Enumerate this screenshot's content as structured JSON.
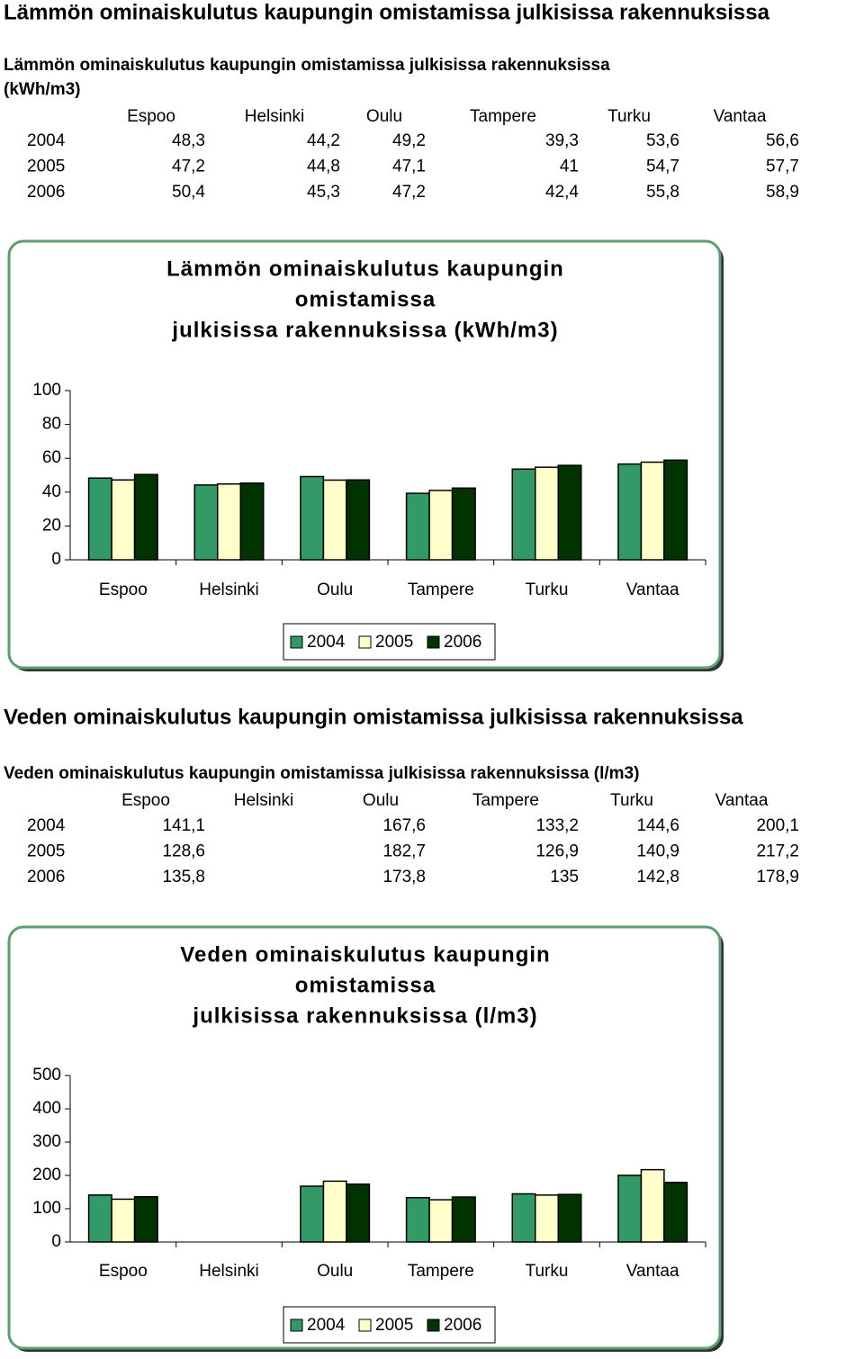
{
  "sections": [
    {
      "heading": "Lämmön ominaiskulutus kaupungin omistamissa julkisissa rakennuksissa",
      "table": {
        "title": [
          "Lämmön ominaiskulutus kaupungin omistamissa julkisissa rakennuksissa",
          "(kWh/m3)"
        ],
        "columns": [
          "Espoo",
          "Helsinki",
          "Oulu",
          "Tampere",
          "Turku",
          "Vantaa"
        ],
        "rows": [
          {
            "label": "2004",
            "cells": [
              "48,3",
              "44,2",
              "49,2",
              "39,3",
              "53,6",
              "56,6"
            ]
          },
          {
            "label": "2005",
            "cells": [
              "47,2",
              "44,8",
              "47,1",
              "41",
              "54,7",
              "57,7"
            ]
          },
          {
            "label": "2006",
            "cells": [
              "50,4",
              "45,3",
              "47,2",
              "42,4",
              "55,8",
              "58,9"
            ]
          }
        ]
      }
    },
    {
      "heading": "Veden ominaiskulutus kaupungin omistamissa julkisissa rakennuksissa",
      "table": {
        "title": [
          "Veden ominaiskulutus kaupungin omistamissa julkisissa rakennuksissa (l/m3)"
        ],
        "columns": [
          "Espoo",
          "Helsinki",
          "Oulu",
          "Tampere",
          "Turku",
          "Vantaa"
        ],
        "rows": [
          {
            "label": "2004",
            "cells": [
              "141,1",
              null,
              "167,6",
              "133,2",
              "144,6",
              "200,1"
            ]
          },
          {
            "label": "2005",
            "cells": [
              "128,6",
              null,
              "182,7",
              "126,9",
              "140,9",
              "217,2"
            ]
          },
          {
            "label": "2006",
            "cells": [
              "135,8",
              null,
              "173,8",
              "135",
              "142,8",
              "178,9"
            ]
          }
        ]
      }
    }
  ],
  "chart_data": [
    {
      "type": "bar",
      "title": [
        "Lämmön ominaiskulutus kaupungin",
        "omistamissa",
        "julkisissa rakennuksissa (kWh/m3)"
      ],
      "categories": [
        "Espoo",
        "Helsinki",
        "Oulu",
        "Tampere",
        "Turku",
        "Vantaa"
      ],
      "series": [
        {
          "name": "2004",
          "color": "#339966",
          "values": [
            48.3,
            44.2,
            49.2,
            39.3,
            53.6,
            56.6
          ]
        },
        {
          "name": "2005",
          "color": "#ffffcc",
          "values": [
            47.2,
            44.8,
            47.1,
            41,
            54.7,
            57.7
          ]
        },
        {
          "name": "2006",
          "color": "#003300",
          "values": [
            50.4,
            45.3,
            47.2,
            42.4,
            55.8,
            58.9
          ]
        }
      ],
      "ylim": [
        0,
        100
      ],
      "yticks": [
        0,
        20,
        40,
        60,
        80,
        100
      ],
      "legend": "bottom"
    },
    {
      "type": "bar",
      "title": [
        "Veden ominaiskulutus kaupungin",
        "omistamissa",
        "julkisissa rakennuksissa (l/m3)"
      ],
      "categories": [
        "Espoo",
        "Helsinki",
        "Oulu",
        "Tampere",
        "Turku",
        "Vantaa"
      ],
      "series": [
        {
          "name": "2004",
          "color": "#339966",
          "values": [
            141.1,
            null,
            167.6,
            133.2,
            144.6,
            200.1
          ]
        },
        {
          "name": "2005",
          "color": "#ffffcc",
          "values": [
            128.6,
            null,
            182.7,
            126.9,
            140.9,
            217.2
          ]
        },
        {
          "name": "2006",
          "color": "#003300",
          "values": [
            135.8,
            null,
            173.8,
            135,
            142.8,
            178.9
          ]
        }
      ],
      "ylim": [
        0,
        500
      ],
      "yticks": [
        0,
        100,
        200,
        300,
        400,
        500
      ],
      "legend": "bottom"
    }
  ]
}
